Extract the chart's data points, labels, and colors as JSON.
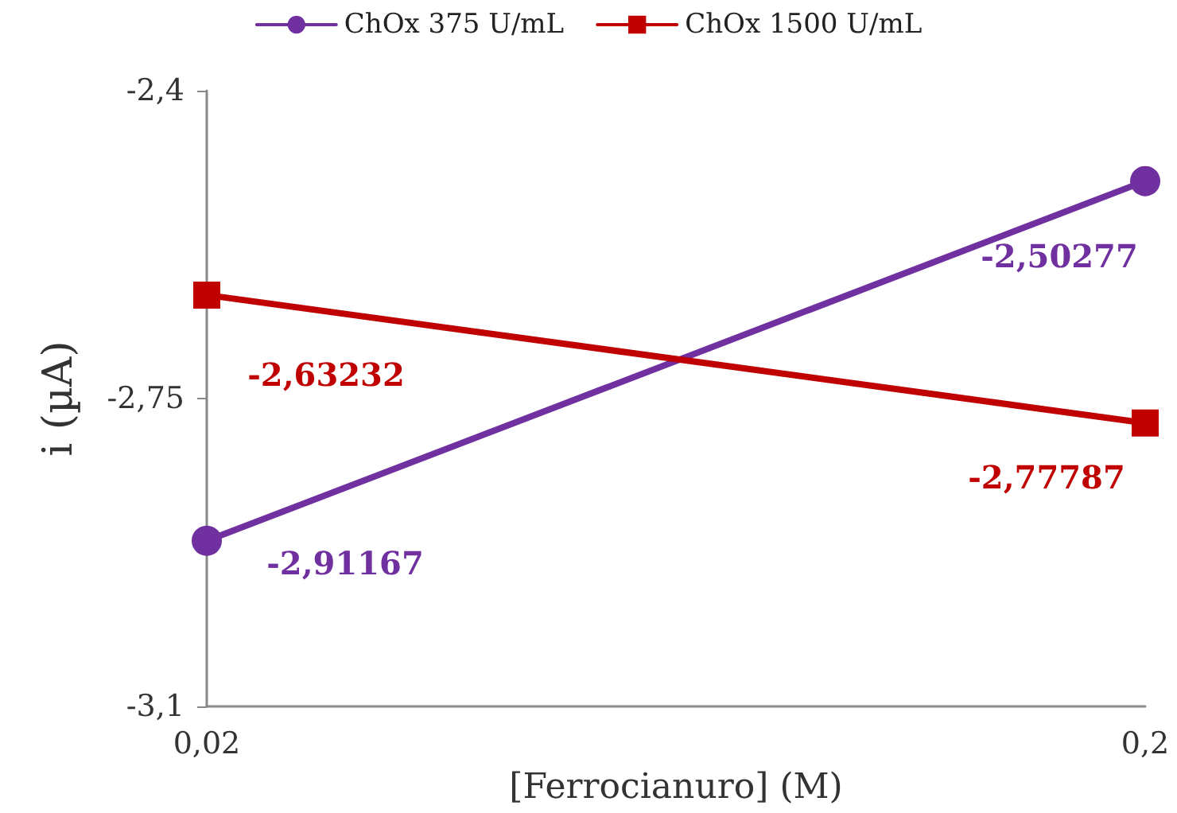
{
  "chart_data": {
    "type": "line",
    "xlabel": "[Ferrocianuro] (M)",
    "ylabel": "i (µA)",
    "categories": [
      "0,02",
      "0,2"
    ],
    "ylim": [
      -3.1,
      -2.4
    ],
    "yticks": [
      {
        "value": -3.1,
        "label": "-3,1"
      },
      {
        "value": -2.75,
        "label": "-2,75"
      },
      {
        "value": -2.4,
        "label": "-2,4"
      }
    ],
    "grid": false,
    "legend": "top",
    "line_style": "solid",
    "series": [
      {
        "name": "ChOx 375 U/mL",
        "color": "#7030a0",
        "marker": "circle",
        "values": [
          -2.91167,
          -2.50277
        ],
        "value_labels": [
          "-2,91167",
          "-2,50277"
        ]
      },
      {
        "name": "ChOx 1500 U/mL",
        "color": "#c00000",
        "marker": "square",
        "values": [
          -2.63232,
          -2.77787
        ],
        "value_labels": [
          "-2,63232",
          "-2,77787"
        ]
      }
    ]
  }
}
